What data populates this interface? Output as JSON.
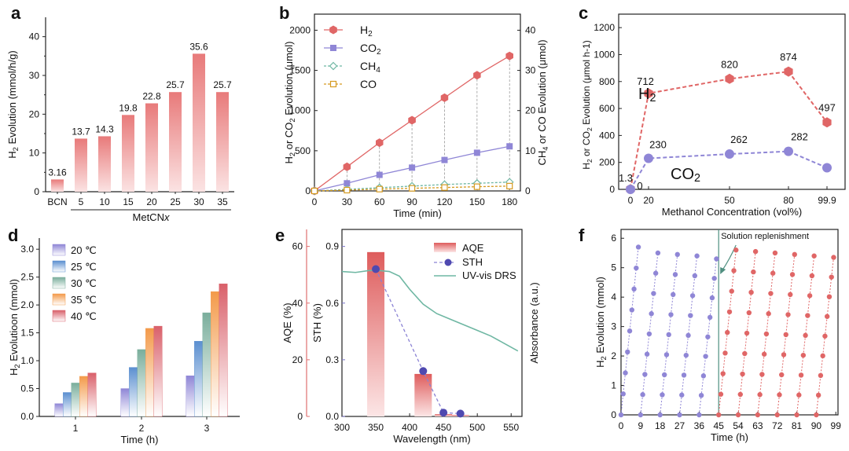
{
  "figure": {
    "panels": [
      "a",
      "b",
      "c",
      "d",
      "e",
      "f"
    ]
  },
  "colors": {
    "red": "#e06666",
    "red_dark": "#c94040",
    "purple": "#8f86d6",
    "purple_text": "#5a52b8",
    "teal": "#6fb7a3",
    "teal_axis": "#4f8f80",
    "orange": "#d59a20",
    "pink_axis": "#e07070"
  },
  "chart_data": [
    {
      "id": "a",
      "type": "bar",
      "panel_label": "a",
      "ylabel_main": "H",
      "ylabel_sub": "2",
      "ylabel_rest": " Evolution (mmol/h/g)",
      "categories": [
        "BCN",
        "5",
        "10",
        "15",
        "20",
        "25",
        "30",
        "35"
      ],
      "values": [
        3.16,
        13.7,
        14.3,
        19.8,
        22.8,
        25.7,
        35.6,
        25.7
      ],
      "data_labels": [
        "3.16",
        "13.7",
        "14.3",
        "19.8",
        "22.8",
        "25.7",
        "35.6",
        "25.7"
      ],
      "group_label": "MetCN",
      "group_label_italic": "x",
      "ylim": [
        0,
        45
      ],
      "yticks": [
        "0",
        "10",
        "20",
        "30",
        "40"
      ]
    },
    {
      "id": "b",
      "type": "line",
      "panel_label": "b",
      "xlabel": "Time (min)",
      "ylabel_left": "H₂ or CO₂ Evolution (μmol)",
      "ylabel_right": "CH₄ or CO Evolution (μmol)",
      "x": [
        0,
        30,
        60,
        90,
        120,
        150,
        180
      ],
      "xticks": [
        "0",
        "30",
        "60",
        "90",
        "120",
        "150",
        "180"
      ],
      "ylim_left": [
        0,
        2200
      ],
      "yticks_left": [
        "0",
        "500",
        "1000",
        "1500",
        "2000"
      ],
      "ylim_right": [
        0,
        44
      ],
      "yticks_right": [
        "0",
        "10",
        "20",
        "30",
        "40"
      ],
      "series": [
        {
          "name": "H",
          "sub": "2",
          "axis": "left",
          "values": [
            0,
            300,
            600,
            880,
            1160,
            1440,
            1680
          ]
        },
        {
          "name": "CO",
          "sub": "2",
          "axis": "left",
          "values": [
            0,
            95,
            200,
            290,
            385,
            475,
            555
          ]
        },
        {
          "name": "CH",
          "sub": "4",
          "axis": "right",
          "values": [
            0,
            0.4,
            0.8,
            1.2,
            1.6,
            1.9,
            2.2
          ]
        },
        {
          "name": "CO",
          "sub": "",
          "axis": "right",
          "values": [
            0,
            0.2,
            0.45,
            0.65,
            0.85,
            1.05,
            1.2
          ]
        }
      ]
    },
    {
      "id": "c",
      "type": "line",
      "panel_label": "c",
      "xlabel": "Methanol Concentration (vol%)",
      "ylabel": "H₂ or CO₂ Evolution (μmol h⁻¹)",
      "categories": [
        "0",
        "20",
        "50",
        "80",
        "99.9"
      ],
      "ylim": [
        0,
        1300
      ],
      "yticks": [
        "0",
        "200",
        "400",
        "600",
        "800",
        "1000",
        "1200"
      ],
      "series": [
        {
          "name": "H",
          "sub": "2",
          "values": [
            1.3,
            712,
            820,
            874,
            497
          ],
          "labels": [
            "1.3",
            "712",
            "820",
            "874",
            "497"
          ]
        },
        {
          "name": "CO",
          "sub": "2",
          "values": [
            0,
            230,
            262,
            282,
            160
          ],
          "labels": [
            "0",
            "230",
            "262",
            "282",
            ""
          ]
        }
      ]
    },
    {
      "id": "d",
      "type": "bar",
      "panel_label": "d",
      "xlabel": "Time (h)",
      "ylabel": "H₂ Evolutioon (mmol)",
      "categories": [
        "1",
        "2",
        "3"
      ],
      "ylim": [
        0,
        3.2
      ],
      "yticks": [
        "0.0",
        "0.5",
        "1.0",
        "1.5",
        "2.0",
        "2.5",
        "3.0"
      ],
      "series": [
        {
          "name": "20 ℃",
          "color": "#8f86d6",
          "values": [
            0.23,
            0.5,
            0.73
          ]
        },
        {
          "name": "25 ℃",
          "color": "#5b8fd0",
          "values": [
            0.43,
            0.88,
            1.35
          ]
        },
        {
          "name": "30 ℃",
          "color": "#7aae9c",
          "values": [
            0.6,
            1.2,
            1.86
          ]
        },
        {
          "name": "35 ℃",
          "color": "#f39a4a",
          "values": [
            0.72,
            1.58,
            2.24
          ]
        },
        {
          "name": "40 ℃",
          "color": "#d9606a",
          "values": [
            0.78,
            1.62,
            2.38
          ]
        }
      ]
    },
    {
      "id": "e",
      "type": "bar",
      "panel_label": "e",
      "xlabel": "Wavelength (nm)",
      "ylabel_aqe": "AQE (%)",
      "ylabel_sth": "STH (%)",
      "ylabel_abs": "Absorbance (a.u.)",
      "xlim": [
        300,
        560
      ],
      "xticks": [
        "300",
        "350",
        "400",
        "450",
        "500",
        "550"
      ],
      "aqe_ticks": [
        "0",
        "20",
        "40",
        "60"
      ],
      "sth_ticks": [
        "0.0",
        "0.3",
        "0.6",
        "0.9"
      ],
      "aqe_ylim": [
        0,
        66
      ],
      "sth_ylim": [
        0,
        0.99
      ],
      "aqe": {
        "name": "AQE",
        "x": [
          350,
          420,
          450,
          475
        ],
        "values": [
          58,
          15,
          0.8,
          0.5
        ]
      },
      "sth": {
        "name": "STH",
        "x": [
          350,
          420,
          450,
          475
        ],
        "values": [
          0.78,
          0.24,
          0.02,
          0.015
        ]
      },
      "uvvis": {
        "name": "UV-vis DRS",
        "x": [
          300,
          320,
          340,
          355,
          370,
          385,
          400,
          420,
          440,
          460,
          480,
          500,
          520,
          540,
          560
        ],
        "values": [
          0.775,
          0.77,
          0.78,
          0.78,
          0.775,
          0.75,
          0.68,
          0.6,
          0.55,
          0.52,
          0.49,
          0.46,
          0.43,
          0.39,
          0.35
        ]
      }
    },
    {
      "id": "f",
      "type": "scatter",
      "panel_label": "f",
      "xlabel": "Time (h)",
      "ylabel": "H₂ Evolution (mmol)",
      "annotation": "Solution replenishment",
      "replenish_at": 45,
      "xlim": [
        0,
        99
      ],
      "xticks": [
        "0",
        "9",
        "18",
        "27",
        "36",
        "45",
        "54",
        "63",
        "72",
        "81",
        "90",
        "99"
      ],
      "ylim": [
        0,
        6.3
      ],
      "yticks": [
        "0",
        "1",
        "2",
        "3",
        "4",
        "5",
        "6"
      ],
      "cycles": [
        {
          "start": 0,
          "max": 5.7,
          "series": "before"
        },
        {
          "start": 9,
          "max": 5.5,
          "series": "before"
        },
        {
          "start": 18,
          "max": 5.45,
          "series": "before"
        },
        {
          "start": 27,
          "max": 5.4,
          "series": "before"
        },
        {
          "start": 36,
          "max": 5.3,
          "series": "before"
        },
        {
          "start": 45,
          "max": 5.6,
          "series": "after"
        },
        {
          "start": 54,
          "max": 5.55,
          "series": "after"
        },
        {
          "start": 63,
          "max": 5.5,
          "series": "after"
        },
        {
          "start": 72,
          "max": 5.45,
          "series": "after"
        },
        {
          "start": 81,
          "max": 5.4,
          "series": "after"
        },
        {
          "start": 90,
          "max": 5.35,
          "series": "after"
        }
      ]
    }
  ]
}
